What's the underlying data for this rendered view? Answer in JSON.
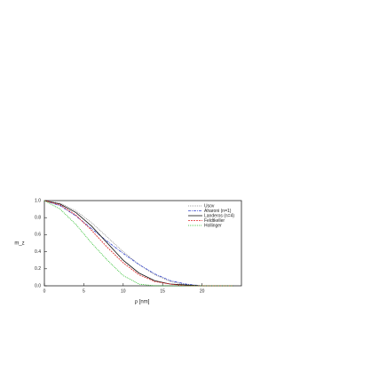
{
  "chart_data": {
    "type": "line",
    "x_label": "ρ [nm]",
    "y_label": "m_z",
    "x": [
      0,
      2,
      4,
      6,
      8,
      10,
      12,
      14,
      16,
      18,
      20,
      22,
      24
    ],
    "series": [
      {
        "name": "Usov",
        "color": "#888888",
        "dash": "1,1",
        "values": [
          1,
          0.97,
          0.88,
          0.74,
          0.57,
          0.4,
          0.25,
          0.13,
          0.05,
          0.01,
          0,
          0,
          0
        ]
      },
      {
        "name": "Aharoni (n=1)",
        "color": "#3344cc",
        "dash": "3,1,1,1",
        "values": [
          1,
          0.94,
          0.82,
          0.67,
          0.52,
          0.38,
          0.25,
          0.14,
          0.06,
          0.02,
          0,
          0,
          0
        ]
      },
      {
        "name": "Landeros (n=4)",
        "color": "#111111",
        "dash": "none",
        "values": [
          1,
          0.96,
          0.86,
          0.7,
          0.5,
          0.3,
          0.15,
          0.06,
          0.02,
          0.01,
          0,
          0,
          0
        ]
      },
      {
        "name": "Feldtkeller",
        "color": "#dd2222",
        "dash": "2,1",
        "values": [
          1,
          0.95,
          0.83,
          0.65,
          0.45,
          0.27,
          0.13,
          0.05,
          0.02,
          0,
          0,
          0,
          0
        ]
      },
      {
        "name": "Hollinger",
        "color": "#22bb22",
        "dash": "1,1",
        "values": [
          1,
          0.9,
          0.72,
          0.5,
          0.3,
          0.12,
          0.02,
          0,
          0,
          0,
          0,
          0,
          0
        ]
      }
    ],
    "xlim": [
      0,
      25
    ],
    "ylim": [
      0,
      1
    ],
    "xticks": [
      0,
      5,
      10,
      15,
      20
    ],
    "yticks": [
      {
        "value": 0,
        "label": "0.0"
      },
      {
        "value": 0.2,
        "label": "0.2"
      },
      {
        "value": 0.4,
        "label": "0.4"
      },
      {
        "value": 0.6,
        "label": "0.6"
      },
      {
        "value": 0.8,
        "label": "0.8"
      },
      {
        "value": 1,
        "label": "1.0"
      }
    ]
  }
}
